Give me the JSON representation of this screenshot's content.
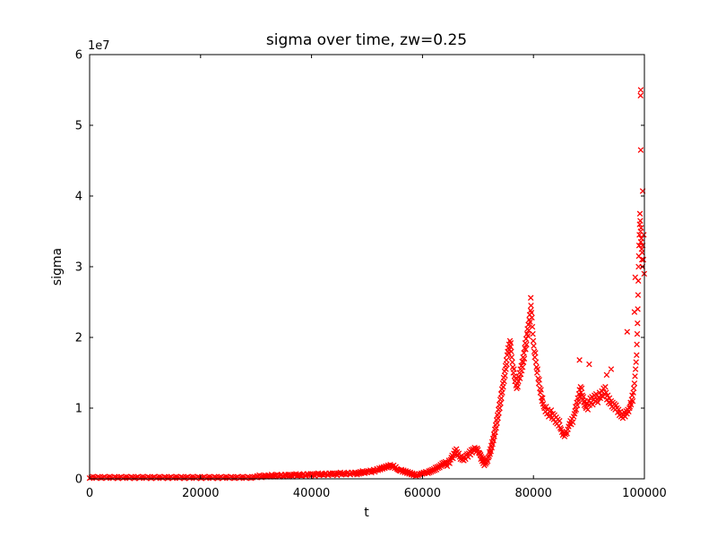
{
  "figure": {
    "background": "#ffffff",
    "title": "sigma over time, zw=0.25",
    "xlabel": "t",
    "ylabel": "sigma",
    "y_offset_label": "1e7"
  },
  "chart_data": {
    "type": "scatter",
    "marker": "x",
    "marker_color": "#ff0000",
    "axes_color": "#000000",
    "title": "sigma over time, zw=0.25",
    "xlabel": "t",
    "ylabel": "sigma",
    "xlim": [
      0,
      100000
    ],
    "ylim": [
      0,
      60000000
    ],
    "y_offset_label": "1e7",
    "grid": false,
    "legend": "none",
    "xticks": [
      0,
      20000,
      40000,
      60000,
      80000,
      100000
    ],
    "yticks_in_1e7": [
      0,
      1,
      2,
      3,
      4,
      5,
      6
    ],
    "sigma_units": "values below are sigma in units of 1e7, sampled from plot",
    "segments": [
      {
        "t0": 0,
        "dt": 300,
        "v": [
          0.01,
          0.02,
          0.03,
          0.02,
          0.01,
          0.03,
          0.02,
          0.01,
          0.02,
          0.03,
          0.01,
          0.02,
          0.03,
          0.02,
          0.01,
          0.03,
          0.02,
          0.01,
          0.02,
          0.03,
          0.01,
          0.02,
          0.03,
          0.02,
          0.01,
          0.03,
          0.02,
          0.01,
          0.02,
          0.03,
          0.01,
          0.02,
          0.03,
          0.02,
          0.01,
          0.03,
          0.02,
          0.01,
          0.02,
          0.03,
          0.01,
          0.02,
          0.03,
          0.02,
          0.01,
          0.03,
          0.02,
          0.01,
          0.02,
          0.03,
          0.01,
          0.02,
          0.03,
          0.02,
          0.01,
          0.03,
          0.02,
          0.01,
          0.02,
          0.03,
          0.01,
          0.02,
          0.03,
          0.02,
          0.01,
          0.03,
          0.02,
          0.01,
          0.02,
          0.03,
          0.01,
          0.02,
          0.03,
          0.02,
          0.01,
          0.03,
          0.02,
          0.01,
          0.02,
          0.03,
          0.01,
          0.02,
          0.03,
          0.02,
          0.01,
          0.03,
          0.02,
          0.01,
          0.02,
          0.03,
          0.01,
          0.02,
          0.03,
          0.02,
          0.01,
          0.03,
          0.02,
          0.01,
          0.02,
          0.03
        ]
      },
      {
        "t0": 30000,
        "dt": 200,
        "v": [
          0.02,
          0.04,
          0.03,
          0.05,
          0.03,
          0.02,
          0.04,
          0.03,
          0.05,
          0.04,
          0.03,
          0.05,
          0.04,
          0.03,
          0.06,
          0.04,
          0.03,
          0.05,
          0.04,
          0.06,
          0.04,
          0.03,
          0.05,
          0.06,
          0.04,
          0.03,
          0.06,
          0.05,
          0.04,
          0.06,
          0.04,
          0.06,
          0.05,
          0.03,
          0.06,
          0.05,
          0.07,
          0.04,
          0.06,
          0.05,
          0.05,
          0.04,
          0.06,
          0.07,
          0.05,
          0.04,
          0.07,
          0.06,
          0.05,
          0.07,
          0.05,
          0.07,
          0.06,
          0.04,
          0.07,
          0.06,
          0.08,
          0.05,
          0.07,
          0.06,
          0.06,
          0.05,
          0.07,
          0.08,
          0.06,
          0.05,
          0.08,
          0.07,
          0.06,
          0.08,
          0.06,
          0.08,
          0.07,
          0.05,
          0.08,
          0.07,
          0.09,
          0.06,
          0.08,
          0.07,
          0.07,
          0.06,
          0.08,
          0.09,
          0.07,
          0.06,
          0.09,
          0.08,
          0.07,
          0.09
        ]
      },
      {
        "t0": 48000,
        "dt": 200,
        "v": [
          0.08,
          0.06,
          0.09,
          0.07,
          0.1,
          0.08,
          0.11,
          0.09,
          0.08,
          0.1,
          0.09,
          0.11,
          0.1,
          0.12,
          0.09,
          0.11,
          0.13,
          0.1,
          0.12,
          0.14,
          0.12,
          0.15,
          0.13,
          0.16,
          0.14,
          0.17,
          0.15,
          0.18,
          0.16,
          0.19,
          0.17,
          0.2,
          0.18,
          0.16,
          0.19,
          0.15,
          0.17,
          0.14,
          0.13,
          0.12
        ]
      },
      {
        "t0": 56000,
        "dt": 200,
        "v": [
          0.11,
          0.13,
          0.1,
          0.12,
          0.09,
          0.11,
          0.08,
          0.1,
          0.07,
          0.09,
          0.06,
          0.08,
          0.05,
          0.07,
          0.04,
          0.06,
          0.05,
          0.07,
          0.06,
          0.08,
          0.07,
          0.09,
          0.08,
          0.1,
          0.09
        ]
      },
      {
        "t0": 61000,
        "dt": 150,
        "v": [
          0.08,
          0.11,
          0.09,
          0.12,
          0.1,
          0.13,
          0.11,
          0.14,
          0.12,
          0.16,
          0.13,
          0.17,
          0.15,
          0.18,
          0.16,
          0.2,
          0.18,
          0.22,
          0.19,
          0.23,
          0.2,
          0.24,
          0.21,
          0.18,
          0.23,
          0.26,
          0.22,
          0.27,
          0.3,
          0.33,
          0.29,
          0.36,
          0.4,
          0.35,
          0.42,
          0.38,
          0.33,
          0.36,
          0.31,
          0.28,
          0.32,
          0.27,
          0.3,
          0.26,
          0.31,
          0.28,
          0.33,
          0.35,
          0.31,
          0.36,
          0.39,
          0.34,
          0.41,
          0.37,
          0.42,
          0.4,
          0.44,
          0.42,
          0.38,
          0.43,
          0.41,
          0.37,
          0.36,
          0.34
        ]
      },
      {
        "t0": 70450,
        "dt": 100,
        "v": [
          0.33,
          0.28,
          0.31,
          0.25,
          0.29,
          0.22,
          0.26,
          0.19,
          0.24,
          0.21,
          0.27,
          0.23,
          0.28,
          0.25,
          0.3
        ]
      },
      {
        "t0": 72000,
        "dt": 80,
        "v": [
          0.32,
          0.38,
          0.35,
          0.42,
          0.39,
          0.47,
          0.44,
          0.52,
          0.49,
          0.57,
          0.54,
          0.63,
          0.6,
          0.7,
          0.66,
          0.76,
          0.72,
          0.83,
          0.79,
          0.9,
          0.86,
          0.98,
          0.93,
          1.05,
          1.0,
          1.12,
          1.07,
          1.2,
          1.14,
          1.27,
          1.22,
          1.35,
          1.3,
          1.43,
          1.38,
          1.52,
          1.46,
          1.6,
          1.55,
          1.68,
          1.62,
          1.75,
          1.8
        ]
      },
      {
        "t0": 75440,
        "dt": 80,
        "v": [
          1.85,
          1.78,
          1.9,
          1.83,
          1.95,
          1.87,
          1.92,
          1.8
        ]
      },
      {
        "t0": 76080,
        "dt": 100,
        "v": [
          1.72,
          1.65,
          1.58,
          1.5,
          1.55,
          1.45,
          1.38,
          1.42,
          1.32,
          1.28,
          1.35,
          1.3,
          1.38,
          1.44
        ]
      },
      {
        "t0": 77480,
        "dt": 80,
        "v": [
          1.5,
          1.42,
          1.55,
          1.48,
          1.6,
          1.53,
          1.66,
          1.58,
          1.72,
          1.65,
          1.78,
          1.7,
          1.85,
          1.92,
          1.83,
          1.98,
          1.9,
          2.05,
          2.12,
          2.02,
          2.18,
          2.1,
          2.25,
          2.32,
          2.22,
          2.38,
          2.45,
          2.35,
          2.28,
          2.15,
          2.05,
          1.95
        ]
      },
      {
        "t0": 80050,
        "dt": 100,
        "v": [
          1.88,
          1.8,
          1.72,
          1.78,
          1.65,
          1.58,
          1.5,
          1.55,
          1.42,
          1.35,
          1.4,
          1.28,
          1.22,
          1.26,
          1.15,
          1.1,
          1.14,
          1.06,
          1.02
        ]
      },
      {
        "t0": 82000,
        "dt": 150,
        "v": [
          1.0,
          0.95,
          1.02,
          0.92,
          0.98,
          0.88,
          0.95,
          0.9,
          0.97,
          0.86,
          0.92,
          0.84,
          0.9,
          0.8,
          0.87,
          0.78,
          0.84,
          0.75,
          0.82,
          0.72,
          0.7,
          0.66,
          0.62,
          0.65,
          0.6,
          0.63,
          0.67,
          0.64,
          0.7,
          0.74,
          0.78,
          0.82,
          0.77,
          0.85,
          0.8,
          0.88,
          0.92
        ]
      },
      {
        "t0": 87500,
        "dt": 100,
        "v": [
          0.96,
          1.02,
          0.98,
          1.08,
          1.04,
          1.14,
          1.1,
          1.2,
          1.26,
          1.16,
          1.3,
          1.22,
          1.28,
          1.18,
          1.12,
          1.16,
          1.08,
          1.04,
          1.1,
          1.02
        ]
      },
      {
        "t0": 89500,
        "dt": 150,
        "v": [
          1.0,
          1.06,
          0.98,
          1.1,
          1.04,
          1.14,
          1.08,
          1.16,
          1.05,
          1.12,
          1.18,
          1.1,
          1.2,
          1.12,
          1.08,
          1.15,
          1.22,
          1.14,
          1.18,
          1.24,
          1.16,
          1.28,
          1.2,
          1.3,
          1.22,
          1.12,
          1.18,
          1.08,
          1.14,
          1.06,
          1.1,
          1.02,
          1.08,
          1.0,
          1.06,
          0.98,
          1.04
        ]
      },
      {
        "t0": 95050,
        "dt": 150,
        "v": [
          1.0,
          0.94,
          0.98,
          0.9,
          0.95,
          0.88,
          0.92,
          0.86,
          0.9,
          0.94,
          0.88,
          0.96,
          0.92,
          0.98,
          0.95,
          1.0
        ]
      },
      {
        "t0": 97400,
        "dt": 100,
        "v": [
          1.02,
          1.08,
          1.05,
          1.12,
          1.18,
          1.1,
          1.22,
          1.28,
          1.35,
          1.45,
          1.55,
          1.65,
          1.75
        ]
      },
      {
        "t0": 98650,
        "dt": 50,
        "v": [
          1.9,
          2.05,
          2.2,
          2.4,
          2.6,
          2.8,
          3.0,
          3.15,
          3.3,
          3.45,
          3.6,
          3.75,
          3.65,
          3.5,
          3.35,
          3.55,
          3.4,
          3.25,
          3.1,
          3.2,
          3.0
        ]
      }
    ],
    "extra_points": [
      [
        79520,
        2.56
      ],
      [
        88300,
        1.68
      ],
      [
        90050,
        1.62
      ],
      [
        93200,
        1.47
      ],
      [
        94000,
        1.55
      ],
      [
        96900,
        2.08
      ],
      [
        98350,
        2.85
      ],
      [
        98200,
        2.36
      ],
      [
        99310,
        5.42
      ],
      [
        99340,
        5.5
      ],
      [
        99330,
        4.65
      ],
      [
        99690,
        4.07
      ],
      [
        99700,
        3.3
      ],
      [
        99800,
        3.1
      ],
      [
        99880,
        3.45
      ],
      [
        99960,
        2.9
      ]
    ]
  }
}
